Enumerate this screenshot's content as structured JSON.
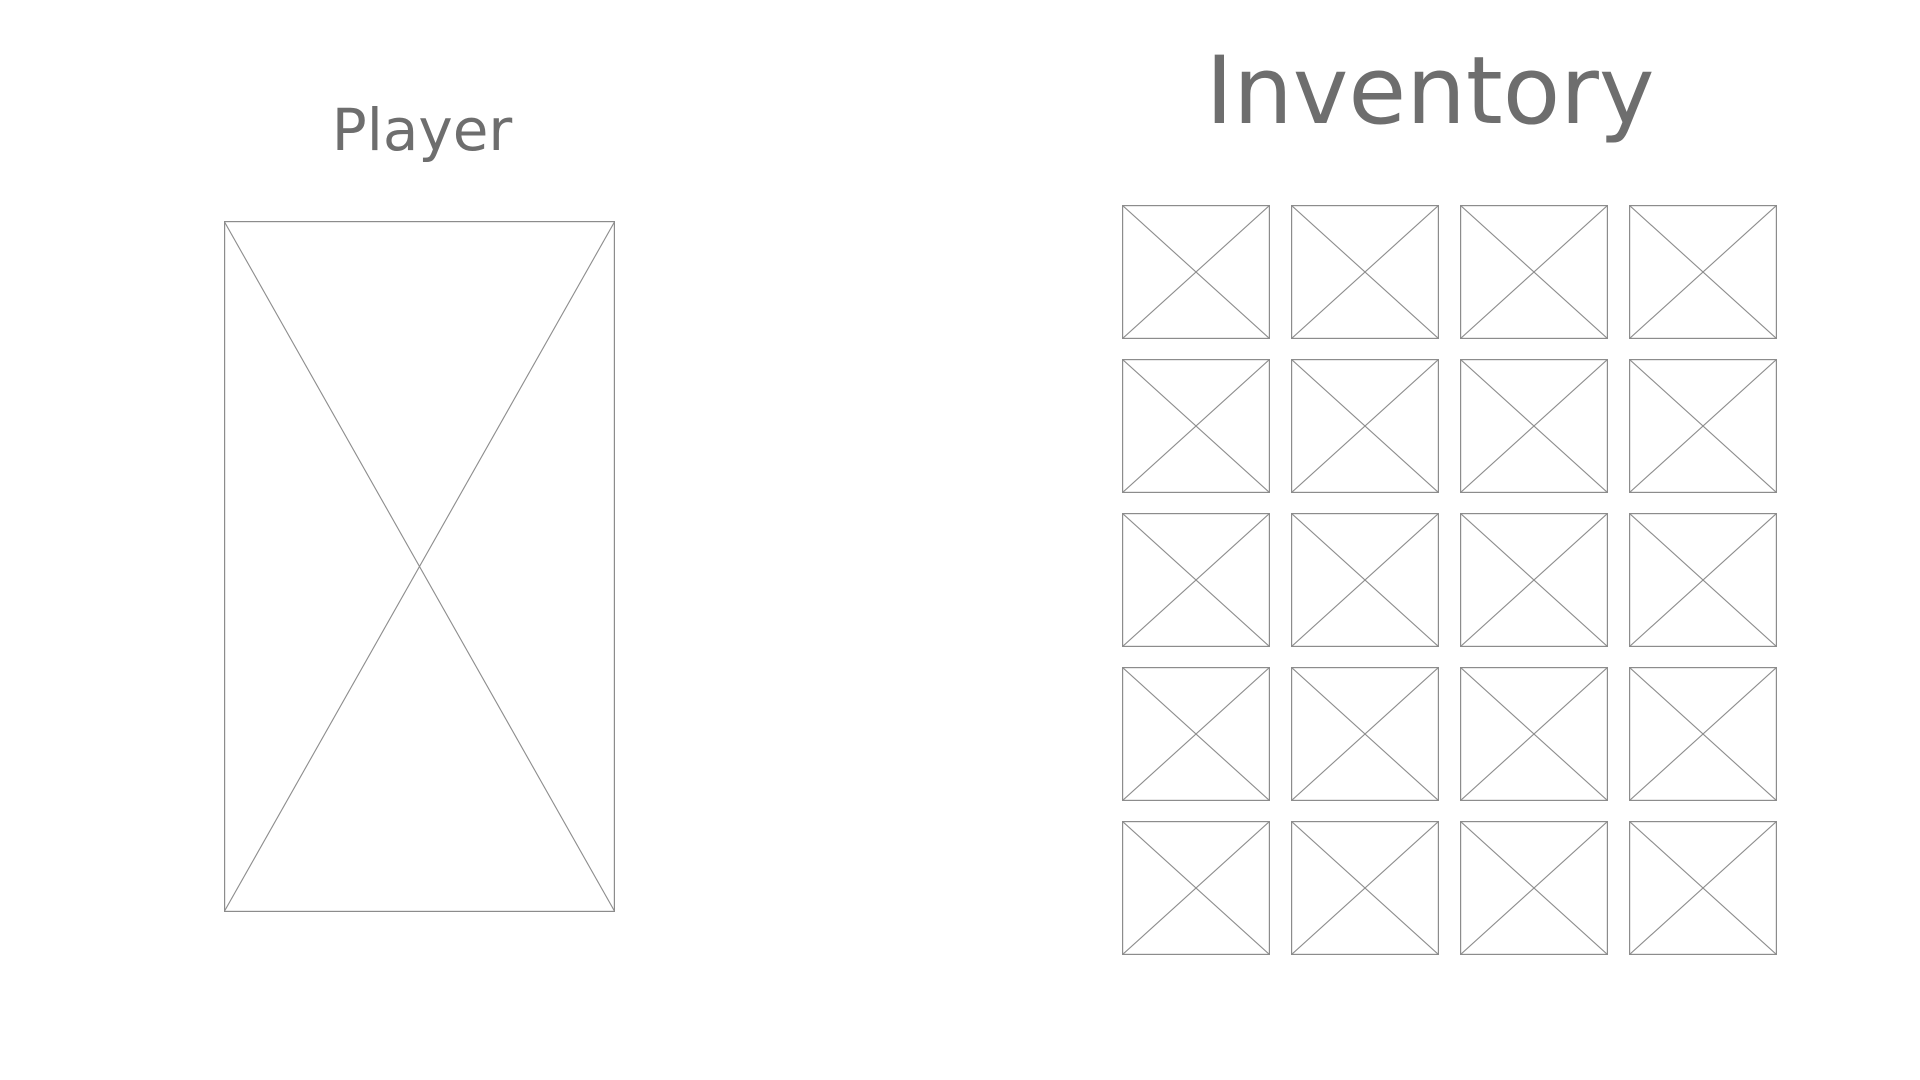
{
  "player": {
    "title": "Player",
    "portrait_icon": "image-placeholder-icon"
  },
  "inventory": {
    "title": "Inventory",
    "rows": 5,
    "columns": 4,
    "slot_icon": "image-placeholder-icon",
    "slot_count": 20
  },
  "colors": {
    "text": "#6e6e6e",
    "line": "#8c8c8c",
    "background": "#ffffff"
  }
}
